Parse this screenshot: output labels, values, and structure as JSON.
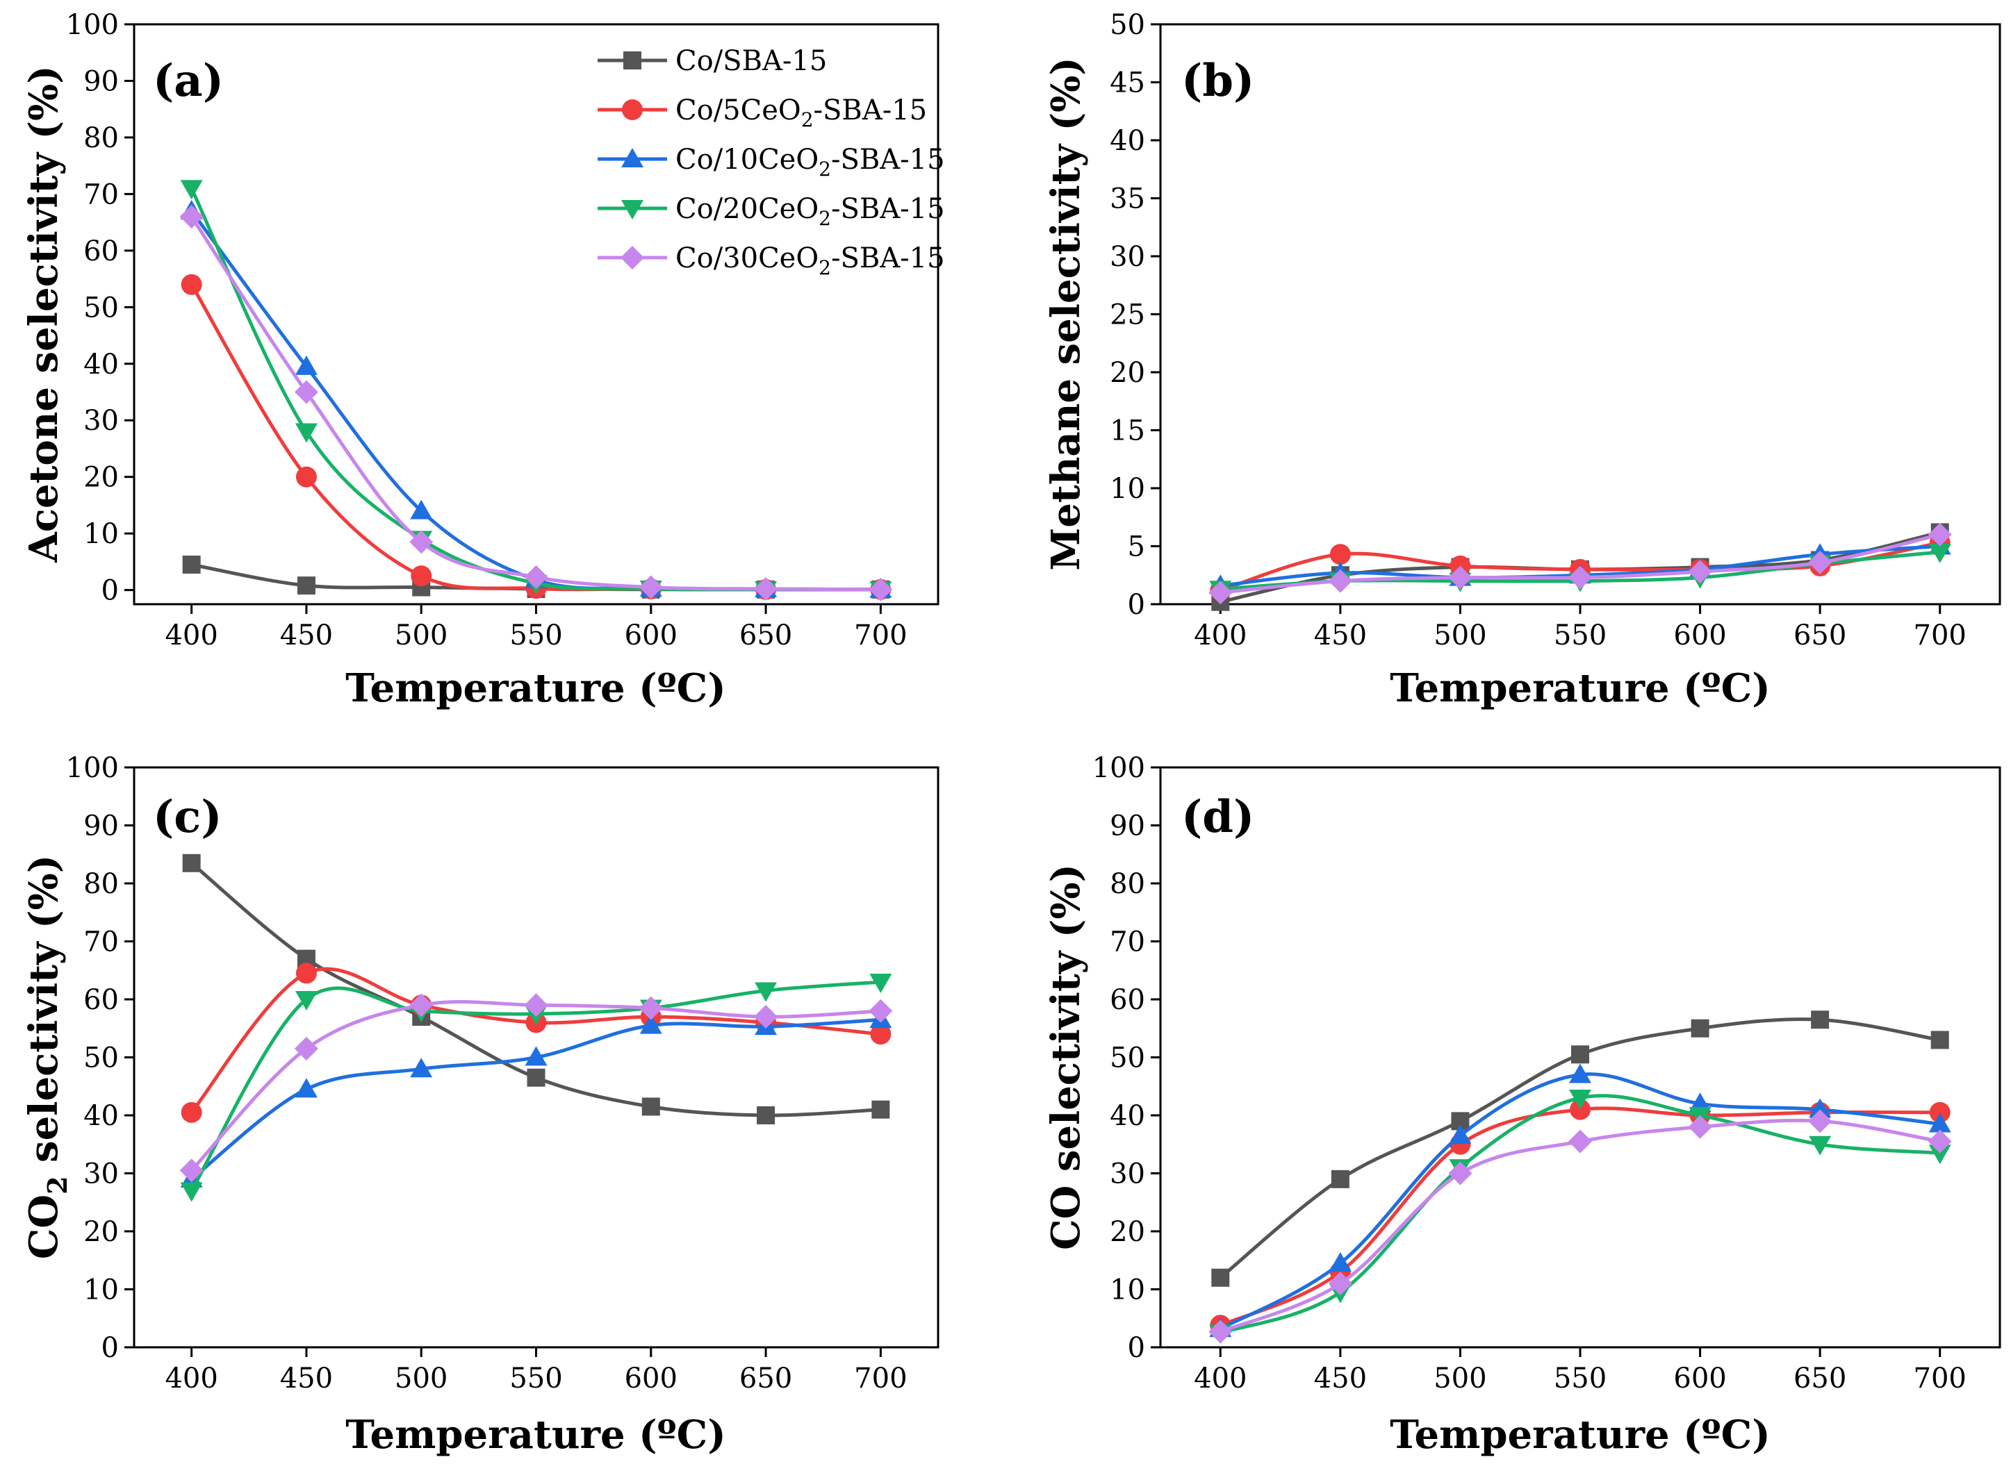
{
  "chart_data": [
    {
      "type": "line",
      "panel_label": "(a)",
      "xlabel": "Temperature (ºC)",
      "ylabel": "Acetone selectivity (%)",
      "xlim": [
        375,
        725
      ],
      "ylim": [
        -2.5,
        100
      ],
      "xticks": [
        400,
        450,
        500,
        550,
        600,
        650,
        700
      ],
      "yticks": [
        0,
        10,
        20,
        30,
        40,
        50,
        60,
        70,
        80,
        90,
        100
      ],
      "legend": "top-right",
      "x": [
        400,
        450,
        500,
        550,
        600,
        650,
        700
      ],
      "series": [
        {
          "name": "Co/SBA-15",
          "label_parts": [
            "Co/SBA-15"
          ],
          "values": [
            4.5,
            0.8,
            0.5,
            0.2,
            0.1,
            0.1,
            0.1
          ]
        },
        {
          "name": "Co/5CeO2-SBA-15",
          "label_parts": [
            "Co/5CeO",
            "2",
            "-SBA-15"
          ],
          "values": [
            54,
            20,
            2.5,
            0.3,
            0.2,
            0.1,
            0.1
          ]
        },
        {
          "name": "Co/10CeO2-SBA-15",
          "label_parts": [
            "Co/10CeO",
            "2",
            "-SBA-15"
          ],
          "values": [
            67,
            39.5,
            14,
            1.8,
            0.3,
            0.2,
            0.1
          ]
        },
        {
          "name": "Co/20CeO2-SBA-15",
          "label_parts": [
            "Co/20CeO",
            "2",
            "-SBA-15"
          ],
          "values": [
            71,
            28,
            9,
            1.2,
            0.2,
            0.1,
            0.1
          ]
        },
        {
          "name": "Co/30CeO2-SBA-15",
          "label_parts": [
            "Co/30CeO",
            "2",
            "-SBA-15"
          ],
          "values": [
            66,
            35,
            8.5,
            2.3,
            0.5,
            0.2,
            0.1
          ]
        }
      ]
    },
    {
      "type": "line",
      "panel_label": "(b)",
      "xlabel": "Temperature (ºC)",
      "ylabel": "Methane selectivity (%)",
      "xlim": [
        375,
        725
      ],
      "ylim": [
        0,
        50
      ],
      "xticks": [
        400,
        450,
        500,
        550,
        600,
        650,
        700
      ],
      "yticks": [
        0,
        5,
        10,
        15,
        20,
        25,
        30,
        35,
        40,
        45,
        50
      ],
      "x": [
        400,
        450,
        500,
        550,
        600,
        650,
        700
      ],
      "series": [
        {
          "name": "Co/SBA-15",
          "values": [
            0.2,
            2.5,
            3.2,
            3.0,
            3.2,
            3.8,
            6.2
          ]
        },
        {
          "name": "Co/5CeO2-SBA-15",
          "values": [
            1.2,
            4.3,
            3.3,
            3.0,
            3.0,
            3.3,
            5.3
          ]
        },
        {
          "name": "Co/10CeO2-SBA-15",
          "values": [
            1.6,
            2.7,
            2.3,
            2.5,
            3.0,
            4.3,
            5.0
          ]
        },
        {
          "name": "Co/20CeO2-SBA-15",
          "values": [
            1.3,
            2.0,
            2.0,
            2.0,
            2.3,
            3.5,
            4.5
          ]
        },
        {
          "name": "Co/30CeO2-SBA-15",
          "values": [
            1.0,
            2.0,
            2.3,
            2.3,
            2.8,
            3.6,
            6.0
          ]
        }
      ]
    },
    {
      "type": "line",
      "panel_label": "(c)",
      "xlabel": "Temperature (ºC)",
      "ylabel_parts": [
        "CO",
        "2",
        " selectivity (%)"
      ],
      "xlim": [
        375,
        725
      ],
      "ylim": [
        0,
        100
      ],
      "xticks": [
        400,
        450,
        500,
        550,
        600,
        650,
        700
      ],
      "yticks": [
        0,
        10,
        20,
        30,
        40,
        50,
        60,
        70,
        80,
        90,
        100
      ],
      "x": [
        400,
        450,
        500,
        550,
        600,
        650,
        700
      ],
      "series": [
        {
          "name": "Co/SBA-15",
          "values": [
            83.5,
            67,
            57,
            46.5,
            41.5,
            40,
            41
          ]
        },
        {
          "name": "Co/5CeO2-SBA-15",
          "values": [
            40.5,
            64.5,
            59,
            56,
            57,
            56,
            54
          ]
        },
        {
          "name": "Co/10CeO2-SBA-15",
          "values": [
            29,
            44.5,
            48,
            50,
            55.5,
            55.3,
            56.5
          ]
        },
        {
          "name": "Co/20CeO2-SBA-15",
          "values": [
            27,
            60,
            58,
            57.5,
            58.5,
            61.5,
            63
          ]
        },
        {
          "name": "Co/30CeO2-SBA-15",
          "values": [
            30.5,
            51.5,
            59,
            59,
            58.5,
            57,
            58
          ]
        }
      ]
    },
    {
      "type": "line",
      "panel_label": "(d)",
      "xlabel": "Temperature (ºC)",
      "ylabel": "CO selectivity (%)",
      "xlim": [
        375,
        725
      ],
      "ylim": [
        0,
        100
      ],
      "xticks": [
        400,
        450,
        500,
        550,
        600,
        650,
        700
      ],
      "yticks": [
        0,
        10,
        20,
        30,
        40,
        50,
        60,
        70,
        80,
        90,
        100
      ],
      "x": [
        400,
        450,
        500,
        550,
        600,
        650,
        700
      ],
      "series": [
        {
          "name": "Co/SBA-15",
          "values": [
            12,
            29,
            39,
            50.5,
            55,
            56.5,
            53
          ]
        },
        {
          "name": "Co/5CeO2-SBA-15",
          "values": [
            3.8,
            13,
            35,
            41,
            40,
            40.5,
            40.5
          ]
        },
        {
          "name": "Co/10CeO2-SBA-15",
          "values": [
            3.2,
            14.5,
            36.5,
            47,
            42,
            41,
            38.5
          ]
        },
        {
          "name": "Co/20CeO2-SBA-15",
          "values": [
            2.5,
            9.5,
            31,
            43,
            40,
            35,
            33.5
          ]
        },
        {
          "name": "Co/30CeO2-SBA-15",
          "values": [
            2.7,
            11,
            30,
            35.5,
            38,
            39,
            35.5
          ]
        }
      ]
    }
  ],
  "series_styles": [
    {
      "color": "#555555",
      "marker": "square"
    },
    {
      "color": "#f03c3c",
      "marker": "circle"
    },
    {
      "color": "#1f6fe0",
      "marker": "triangle-up"
    },
    {
      "color": "#17b267",
      "marker": "triangle-down"
    },
    {
      "color": "#c786ec",
      "marker": "diamond"
    }
  ]
}
